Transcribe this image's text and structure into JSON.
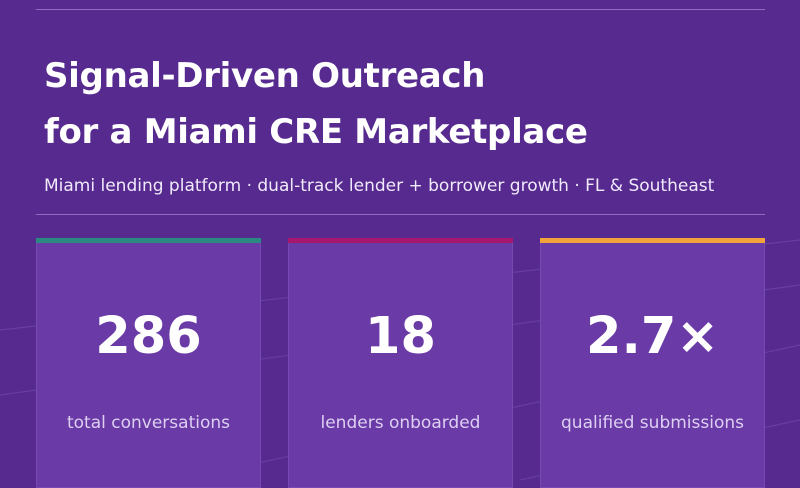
{
  "header": {
    "title_line1": "Signal-Driven Outreach",
    "title_line2": "for a Miami CRE Marketplace",
    "subtitle": "Miami lending platform · dual-track lender + borrower growth · FL & Southeast"
  },
  "stats": [
    {
      "value": "286",
      "label": "total conversations",
      "accent": "#2a8a82"
    },
    {
      "value": "18",
      "label": "lenders onboarded",
      "accent": "#a6176f"
    },
    {
      "value": "2.7×",
      "label": "qualified submissions",
      "accent": "#f2a33a"
    }
  ],
  "colors": {
    "background": "#562a8e",
    "card": "#6a3aa6"
  }
}
